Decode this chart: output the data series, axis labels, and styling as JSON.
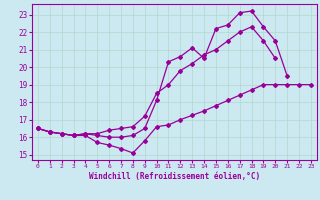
{
  "xlabel": "Windchill (Refroidissement éolien,°C)",
  "background_color": "#cce8f0",
  "grid_color": "#b0d8cc",
  "line_color": "#990099",
  "xlim": [
    -0.5,
    23.5
  ],
  "ylim": [
    14.7,
    23.6
  ],
  "yticks": [
    15,
    16,
    17,
    18,
    19,
    20,
    21,
    22,
    23
  ],
  "xticks": [
    0,
    1,
    2,
    3,
    4,
    5,
    6,
    7,
    8,
    9,
    10,
    11,
    12,
    13,
    14,
    15,
    16,
    17,
    18,
    19,
    20,
    21,
    22,
    23
  ],
  "line1_x": [
    0,
    1,
    2,
    3,
    4,
    5,
    6,
    7,
    8,
    9,
    10,
    11,
    12,
    13,
    14,
    15,
    16,
    17,
    18,
    19,
    20,
    21,
    22,
    23
  ],
  "line1_y": [
    16.5,
    16.3,
    16.2,
    16.1,
    16.1,
    15.7,
    15.55,
    15.35,
    15.1,
    15.8,
    16.6,
    16.7,
    17.0,
    17.25,
    17.5,
    17.8,
    18.1,
    18.4,
    18.7,
    19.0,
    19.0,
    19.0,
    19.0,
    19.0
  ],
  "line2_x": [
    0,
    1,
    2,
    3,
    4,
    5,
    6,
    7,
    8,
    9,
    10,
    11,
    12,
    13,
    14,
    15,
    16,
    17,
    18,
    19,
    20,
    21,
    22,
    23
  ],
  "line2_y": [
    16.5,
    16.3,
    16.2,
    16.1,
    16.2,
    16.1,
    16.0,
    16.0,
    16.1,
    16.5,
    18.1,
    20.3,
    20.6,
    21.1,
    20.5,
    22.2,
    22.4,
    23.1,
    23.2,
    22.3,
    21.5,
    19.5,
    null,
    null
  ],
  "line3_x": [
    0,
    1,
    2,
    3,
    4,
    5,
    6,
    7,
    8,
    9,
    10,
    11,
    12,
    13,
    14,
    15,
    16,
    17,
    18,
    19,
    20,
    21,
    22,
    23
  ],
  "line3_y": [
    16.5,
    16.3,
    16.2,
    16.1,
    16.2,
    16.2,
    16.4,
    16.5,
    16.6,
    17.2,
    18.5,
    19.0,
    19.8,
    20.2,
    20.7,
    21.0,
    21.5,
    22.0,
    22.3,
    21.5,
    20.5,
    null,
    null,
    null
  ]
}
